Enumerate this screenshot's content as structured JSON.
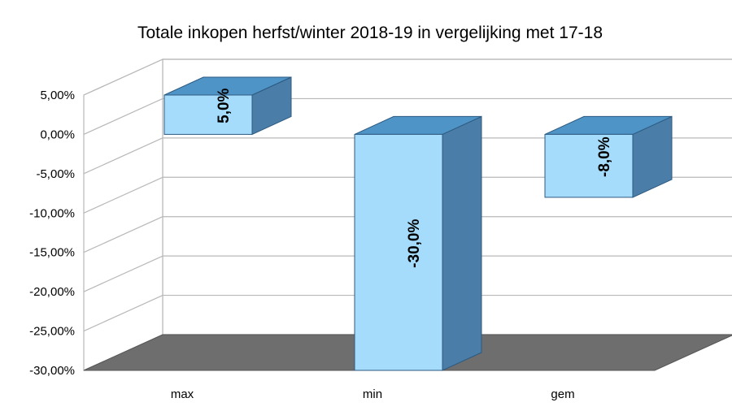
{
  "chart_data": {
    "type": "bar",
    "title": "Totale inkopen herfst/winter 2018-19 in vergelijking met 17-18",
    "categories": [
      "max",
      "min",
      "gem"
    ],
    "values": [
      5.0,
      -30.0,
      -8.0
    ],
    "data_labels": [
      "5,0%",
      "-30,0%",
      "-8,0%"
    ],
    "y_ticks": [
      5,
      0,
      -5,
      -10,
      -15,
      -20,
      -25,
      -30
    ],
    "y_tick_labels": [
      "5,00%",
      "0,00%",
      "-5,00%",
      "-10,00%",
      "-15,00%",
      "-20,00%",
      "-25,00%",
      "-30,00%"
    ],
    "ylim": [
      -30,
      5
    ],
    "grid": true,
    "legend": "none",
    "three_d": true,
    "colors": {
      "bar_front": "#a6dcfb",
      "bar_top": "#4f94c6",
      "bar_side": "#4a7ea8",
      "bar_edge": "#2d5a80",
      "floor": "#6e6e6e",
      "grid": "#b8b8b8"
    }
  }
}
